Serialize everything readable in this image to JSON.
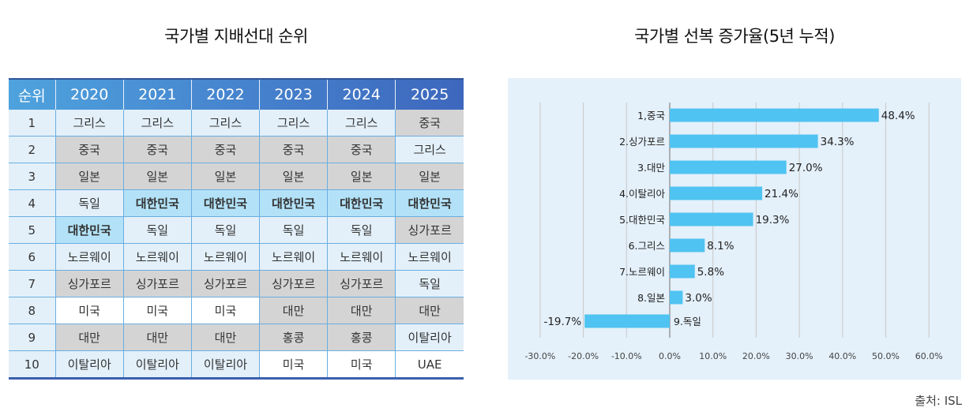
{
  "table": {
    "title": "국가별 지배선대 순위",
    "headers": [
      "순위",
      "2020",
      "2021",
      "2022",
      "2023",
      "2024",
      "2025"
    ],
    "highlight_country": "대한민국",
    "rows": [
      {
        "rank": "1",
        "cells": [
          {
            "v": "그리스",
            "shade": "light"
          },
          {
            "v": "그리스",
            "shade": "light"
          },
          {
            "v": "그리스",
            "shade": "light"
          },
          {
            "v": "그리스",
            "shade": "light"
          },
          {
            "v": "그리스",
            "shade": "light"
          },
          {
            "v": "중국",
            "shade": "gray"
          }
        ]
      },
      {
        "rank": "2",
        "cells": [
          {
            "v": "중국",
            "shade": "gray"
          },
          {
            "v": "중국",
            "shade": "gray"
          },
          {
            "v": "중국",
            "shade": "gray"
          },
          {
            "v": "중국",
            "shade": "gray"
          },
          {
            "v": "중국",
            "shade": "gray"
          },
          {
            "v": "그리스",
            "shade": "light"
          }
        ]
      },
      {
        "rank": "3",
        "cells": [
          {
            "v": "일본",
            "shade": "gray"
          },
          {
            "v": "일본",
            "shade": "gray"
          },
          {
            "v": "일본",
            "shade": "gray"
          },
          {
            "v": "일본",
            "shade": "gray"
          },
          {
            "v": "일본",
            "shade": "gray"
          },
          {
            "v": "일본",
            "shade": "gray"
          }
        ]
      },
      {
        "rank": "4",
        "cells": [
          {
            "v": "독일",
            "shade": "light"
          },
          {
            "v": "대한민국",
            "shade": "korea"
          },
          {
            "v": "대한민국",
            "shade": "korea"
          },
          {
            "v": "대한민국",
            "shade": "korea"
          },
          {
            "v": "대한민국",
            "shade": "korea"
          },
          {
            "v": "대한민국",
            "shade": "korea"
          }
        ]
      },
      {
        "rank": "5",
        "cells": [
          {
            "v": "대한민국",
            "shade": "korea"
          },
          {
            "v": "독일",
            "shade": "light"
          },
          {
            "v": "독일",
            "shade": "light"
          },
          {
            "v": "독일",
            "shade": "light"
          },
          {
            "v": "독일",
            "shade": "light"
          },
          {
            "v": "싱가포르",
            "shade": "gray"
          }
        ]
      },
      {
        "rank": "6",
        "cells": [
          {
            "v": "노르웨이",
            "shade": "light"
          },
          {
            "v": "노르웨이",
            "shade": "light"
          },
          {
            "v": "노르웨이",
            "shade": "light"
          },
          {
            "v": "노르웨이",
            "shade": "light"
          },
          {
            "v": "노르웨이",
            "shade": "light"
          },
          {
            "v": "노르웨이",
            "shade": "light"
          }
        ]
      },
      {
        "rank": "7",
        "cells": [
          {
            "v": "싱가포르",
            "shade": "gray"
          },
          {
            "v": "싱가포르",
            "shade": "gray"
          },
          {
            "v": "싱가포르",
            "shade": "gray"
          },
          {
            "v": "싱가포르",
            "shade": "gray"
          },
          {
            "v": "싱가포르",
            "shade": "gray"
          },
          {
            "v": "독일",
            "shade": "light"
          }
        ]
      },
      {
        "rank": "8",
        "cells": [
          {
            "v": "미국",
            "shade": "white"
          },
          {
            "v": "미국",
            "shade": "white"
          },
          {
            "v": "미국",
            "shade": "white"
          },
          {
            "v": "대만",
            "shade": "gray"
          },
          {
            "v": "대만",
            "shade": "gray"
          },
          {
            "v": "대만",
            "shade": "gray"
          }
        ]
      },
      {
        "rank": "9",
        "cells": [
          {
            "v": "대만",
            "shade": "gray"
          },
          {
            "v": "대만",
            "shade": "gray"
          },
          {
            "v": "대만",
            "shade": "gray"
          },
          {
            "v": "홍콩",
            "shade": "gray"
          },
          {
            "v": "홍콩",
            "shade": "gray"
          },
          {
            "v": "이탈리아",
            "shade": "light"
          }
        ]
      },
      {
        "rank": "10",
        "cells": [
          {
            "v": "이탈리아",
            "shade": "light"
          },
          {
            "v": "이탈리아",
            "shade": "light"
          },
          {
            "v": "이탈리아",
            "shade": "light"
          },
          {
            "v": "미국",
            "shade": "white"
          },
          {
            "v": "미국",
            "shade": "white"
          },
          {
            "v": "UAE",
            "shade": "white"
          }
        ]
      }
    ]
  },
  "chart_data": {
    "type": "bar",
    "orientation": "horizontal",
    "title": "국가별 선복 증가율(5년 누적)",
    "categories": [
      "1,중국",
      "2.싱가포르",
      "3.대만",
      "4.이탈리아",
      "5.대한민국",
      "6.그리스",
      "7.노르웨이",
      "8.일본",
      "9.독일"
    ],
    "values": [
      48.4,
      34.3,
      27.0,
      21.4,
      19.3,
      8.1,
      5.8,
      3.0,
      -19.7
    ],
    "value_labels": [
      "48.4%",
      "34.3%",
      "27.0%",
      "21.4%",
      "19.3%",
      "8.1%",
      "5.8%",
      "3.0%",
      "-19.7%"
    ],
    "xlabel": "",
    "ylabel": "",
    "xlim": [
      -30,
      60
    ],
    "xticks": [
      -30,
      -20,
      -10,
      0,
      10,
      20,
      30,
      40,
      50,
      60
    ],
    "xtick_labels": [
      "-30.0%",
      "-20.0%",
      "-10.0%",
      "0.0%",
      "10.0%",
      "20.0%",
      "30.0%",
      "40.0%",
      "50.0%",
      "60.0%"
    ],
    "grid": "vertical",
    "legend": "none",
    "bar_color": "#4fc3f1",
    "background_color": "#e4f0fa"
  },
  "source": "출처: ISL",
  "colors": {
    "header_start": "#4ea3dd",
    "header_end": "#3d67bd",
    "cell_light": "#e3f0fa",
    "cell_gray": "#d4d4d4",
    "cell_korea": "#b3e2f8"
  }
}
